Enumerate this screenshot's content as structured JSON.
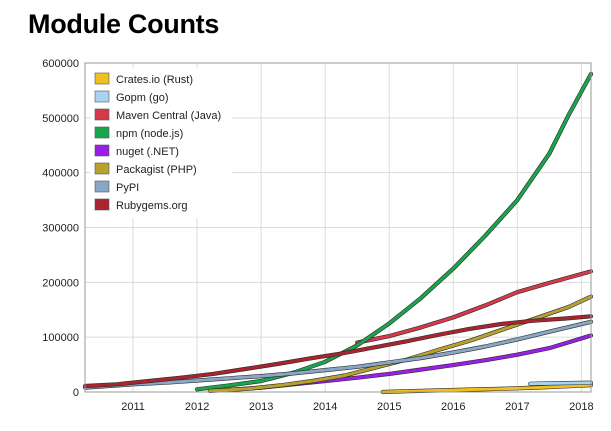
{
  "chart_data": {
    "type": "line",
    "title": "Module Counts",
    "xlabel": "",
    "ylabel": "",
    "xlim": [
      2010.25,
      2018.15
    ],
    "ylim": [
      0,
      600000
    ],
    "x_ticks": [
      2011,
      2012,
      2013,
      2014,
      2015,
      2016,
      2017,
      2018
    ],
    "y_ticks": [
      0,
      100000,
      200000,
      300000,
      400000,
      500000,
      600000
    ],
    "grid": true,
    "legend_position": "top-left",
    "series": [
      {
        "name": "Crates.io (Rust)",
        "color": "#f0c020",
        "points": [
          [
            2014.9,
            0
          ],
          [
            2015.3,
            1500
          ],
          [
            2015.8,
            3000
          ],
          [
            2016.3,
            4500
          ],
          [
            2016.8,
            6000
          ],
          [
            2017.3,
            8000
          ],
          [
            2017.8,
            10500
          ],
          [
            2018.15,
            12500
          ]
        ]
      },
      {
        "name": "Gopm (go)",
        "color": "#a8d4f2",
        "points": [
          [
            2017.2,
            15000
          ],
          [
            2017.6,
            16000
          ],
          [
            2018.15,
            17000
          ]
        ]
      },
      {
        "name": "Maven Central (Java)",
        "color": "#d63a4a",
        "points": [
          [
            2014.5,
            90000
          ],
          [
            2015.0,
            102000
          ],
          [
            2015.5,
            118000
          ],
          [
            2016.0,
            136000
          ],
          [
            2016.5,
            158000
          ],
          [
            2017.0,
            182000
          ],
          [
            2017.5,
            199000
          ],
          [
            2018.15,
            220000
          ]
        ]
      },
      {
        "name": "npm (node.js)",
        "color": "#1aa54d",
        "points": [
          [
            2012.0,
            5000
          ],
          [
            2012.5,
            12000
          ],
          [
            2013.0,
            20000
          ],
          [
            2013.5,
            35000
          ],
          [
            2014.0,
            55000
          ],
          [
            2014.5,
            85000
          ],
          [
            2015.0,
            125000
          ],
          [
            2015.5,
            172000
          ],
          [
            2016.0,
            225000
          ],
          [
            2016.5,
            285000
          ],
          [
            2017.0,
            350000
          ],
          [
            2017.5,
            435000
          ],
          [
            2017.8,
            505000
          ],
          [
            2018.15,
            580000
          ]
        ]
      },
      {
        "name": "nuget (.NET)",
        "color": "#9b1ee6",
        "points": [
          [
            2012.4,
            3000
          ],
          [
            2013.0,
            8000
          ],
          [
            2013.5,
            14000
          ],
          [
            2014.0,
            20000
          ],
          [
            2014.5,
            26000
          ],
          [
            2015.0,
            33000
          ],
          [
            2015.5,
            41000
          ],
          [
            2016.0,
            49000
          ],
          [
            2016.5,
            58000
          ],
          [
            2017.0,
            68000
          ],
          [
            2017.5,
            80000
          ],
          [
            2018.15,
            103000
          ]
        ]
      },
      {
        "name": "Packagist (PHP)",
        "color": "#b8a12e",
        "points": [
          [
            2012.2,
            2000
          ],
          [
            2012.8,
            6000
          ],
          [
            2013.3,
            12000
          ],
          [
            2013.8,
            20000
          ],
          [
            2014.3,
            30000
          ],
          [
            2014.8,
            45000
          ],
          [
            2015.3,
            60000
          ],
          [
            2015.8,
            78000
          ],
          [
            2016.3,
            95000
          ],
          [
            2016.8,
            115000
          ],
          [
            2017.3,
            135000
          ],
          [
            2017.8,
            155000
          ],
          [
            2018.15,
            174000
          ]
        ]
      },
      {
        "name": "PyPI",
        "color": "#87a7c4",
        "points": [
          [
            2010.25,
            8000
          ],
          [
            2011.0,
            14000
          ],
          [
            2011.5,
            17000
          ],
          [
            2012.0,
            21000
          ],
          [
            2012.5,
            25000
          ],
          [
            2013.0,
            29000
          ],
          [
            2013.5,
            34000
          ],
          [
            2014.0,
            40000
          ],
          [
            2014.5,
            46000
          ],
          [
            2015.0,
            54000
          ],
          [
            2015.5,
            62000
          ],
          [
            2016.0,
            72000
          ],
          [
            2016.5,
            83000
          ],
          [
            2017.0,
            96000
          ],
          [
            2017.5,
            110000
          ],
          [
            2018.15,
            128000
          ]
        ]
      },
      {
        "name": "Rubygems.org",
        "color": "#a8242e",
        "points": [
          [
            2010.25,
            11000
          ],
          [
            2010.75,
            14000
          ],
          [
            2011.25,
            20000
          ],
          [
            2011.75,
            26000
          ],
          [
            2012.25,
            33000
          ],
          [
            2012.75,
            42000
          ],
          [
            2013.25,
            51000
          ],
          [
            2013.75,
            61000
          ],
          [
            2014.25,
            70000
          ],
          [
            2014.75,
            81000
          ],
          [
            2015.25,
            92000
          ],
          [
            2015.75,
            104000
          ],
          [
            2016.25,
            115000
          ],
          [
            2016.75,
            124000
          ],
          [
            2017.25,
            130000
          ],
          [
            2017.75,
            134000
          ],
          [
            2018.15,
            138000
          ]
        ]
      }
    ]
  }
}
